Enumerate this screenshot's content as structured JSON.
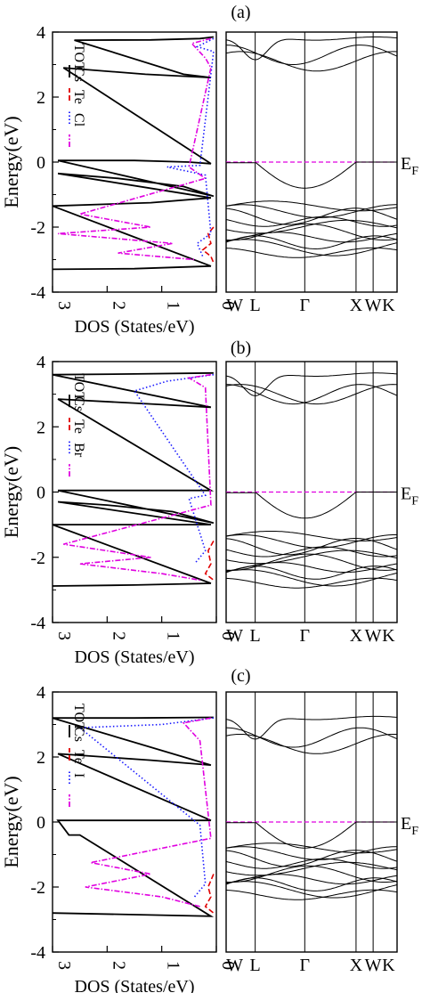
{
  "panels": [
    {
      "label": "(a)",
      "ylabel": "Energy(eV)",
      "ef_label": "E",
      "ef_sub": "F",
      "dos": {
        "xlabel": "DOS (States/eV)",
        "xticks": [
          "3",
          "2",
          "1",
          "0"
        ],
        "yticks": [
          "4",
          "2",
          "0",
          "-2",
          "-4"
        ],
        "legend": [
          {
            "name": "TOT",
            "color": "#000000",
            "dash": "solid"
          },
          {
            "name": "Cs",
            "color": "#e00000",
            "dash": "dashed"
          },
          {
            "name": "Te",
            "color": "#1a1aff",
            "dash": "dotted"
          },
          {
            "name": "Cl",
            "color": "#e000e0",
            "dash": "dashdot"
          }
        ]
      },
      "bands": {
        "kpoints": [
          "W",
          "L",
          "Γ",
          "X",
          "W",
          "K"
        ]
      }
    },
    {
      "label": "(b)",
      "ylabel": "Energy(eV)",
      "ef_label": "E",
      "ef_sub": "F",
      "dos": {
        "xlabel": "DOS (States/eV)",
        "xticks": [
          "3",
          "2",
          "1",
          "0"
        ],
        "yticks": [
          "4",
          "2",
          "0",
          "-2",
          "-4"
        ],
        "legend": [
          {
            "name": "TOT",
            "color": "#000000",
            "dash": "solid"
          },
          {
            "name": "Cs",
            "color": "#e00000",
            "dash": "dashed"
          },
          {
            "name": "Te",
            "color": "#1a1aff",
            "dash": "dotted"
          },
          {
            "name": "Br",
            "color": "#e000e0",
            "dash": "dashdot"
          }
        ]
      },
      "bands": {
        "kpoints": [
          "W",
          "L",
          "Γ",
          "X",
          "W",
          "K"
        ]
      }
    },
    {
      "label": "(c)",
      "ylabel": "Energy(eV)",
      "ef_label": "E",
      "ef_sub": "F",
      "dos": {
        "xlabel": "DOS (States/eV)",
        "xticks": [
          "3",
          "2",
          "1",
          "0"
        ],
        "yticks": [
          "4",
          "2",
          "0",
          "-2",
          "-4"
        ],
        "legend": [
          {
            "name": "TOT",
            "color": "#000000",
            "dash": "solid"
          },
          {
            "name": "Cs",
            "color": "#e00000",
            "dash": "dashed"
          },
          {
            "name": "Te",
            "color": "#1a1aff",
            "dash": "dotted"
          },
          {
            "name": "I",
            "color": "#e000e0",
            "dash": "dashdot"
          }
        ]
      },
      "bands": {
        "kpoints": [
          "W",
          "L",
          "Γ",
          "X",
          "W",
          "K"
        ]
      }
    }
  ],
  "chart_data": [
    {
      "type": "line",
      "panel": "(a)",
      "title": "(a)",
      "subplots": [
        {
          "kind": "density of states",
          "xlabel": "DOS (States/eV)",
          "ylabel": "Energy(eV)",
          "xlim": [
            3,
            0
          ],
          "ylim": [
            -4,
            4
          ],
          "series": [
            {
              "name": "TOT",
              "points": [
                [
                  0.05,
                  3.85
                ],
                [
                  0.3,
                  3.8
                ],
                [
                  1.2,
                  3.76
                ],
                [
                  2.6,
                  3.75
                ],
                [
                  0.6,
                  2.7
                ],
                [
                  0.1,
                  2.6
                ],
                [
                  1.3,
                  2.7
                ],
                [
                  2.8,
                  2.9
                ],
                [
                  0.1,
                  -0.05
                ],
                [
                  0.5,
                  0.0
                ],
                [
                  1.5,
                  0.05
                ],
                [
                  2.9,
                  0.05
                ],
                [
                  0.05,
                  -1.05
                ],
                [
                  0.6,
                  -0.75
                ],
                [
                  1.8,
                  -0.5
                ],
                [
                  2.9,
                  -0.35
                ],
                [
                  0.1,
                  -1.1
                ],
                [
                  1.2,
                  -1.25
                ],
                [
                  3.0,
                  -1.35
                ],
                [
                  0.1,
                  -3.2
                ],
                [
                  1.5,
                  -3.28
                ],
                [
                  3.0,
                  -3.3
                ]
              ]
            },
            {
              "name": "Cs",
              "points": [
                [
                  0.05,
                  -2.0
                ],
                [
                  0.15,
                  -2.2
                ],
                [
                  0.1,
                  -2.5
                ],
                [
                  0.25,
                  -2.7
                ],
                [
                  0.1,
                  -2.9
                ],
                [
                  0.05,
                  -3.1
                ]
              ]
            },
            {
              "name": "Te",
              "points": [
                [
                  0.05,
                  3.8
                ],
                [
                  0.35,
                  3.55
                ],
                [
                  0.05,
                  3.4
                ],
                [
                  0.3,
                  -0.1
                ],
                [
                  0.9,
                  -0.15
                ],
                [
                  0.2,
                  -0.4
                ],
                [
                  0.1,
                  -2.2
                ],
                [
                  0.35,
                  -2.5
                ],
                [
                  0.25,
                  -2.9
                ]
              ]
            },
            {
              "name": "Cl",
              "points": [
                [
                  0.1,
                  3.8
                ],
                [
                  0.45,
                  3.65
                ],
                [
                  0.2,
                  3.2
                ],
                [
                  0.1,
                  2.9
                ],
                [
                  0.5,
                  -0.15
                ],
                [
                  0.2,
                  -0.5
                ],
                [
                  2.5,
                  -1.6
                ],
                [
                  1.2,
                  -2.0
                ],
                [
                  2.9,
                  -2.2
                ],
                [
                  0.8,
                  -2.5
                ],
                [
                  1.8,
                  -2.8
                ],
                [
                  0.4,
                  -3.0
                ]
              ]
            }
          ]
        },
        {
          "kind": "band structure",
          "ylim": [
            -4,
            4
          ],
          "x_tick_labels": [
            "W",
            "L",
            "Γ",
            "X",
            "W",
            "K"
          ],
          "fermi_level": 0,
          "fermi_label": "EF"
        }
      ]
    },
    {
      "type": "line",
      "panel": "(b)",
      "title": "(b)",
      "subplots": [
        {
          "kind": "density of states",
          "xlabel": "DOS (States/eV)",
          "ylabel": "Energy(eV)",
          "xlim": [
            3,
            0
          ],
          "ylim": [
            -4,
            4
          ],
          "series": [
            {
              "name": "TOT",
              "points": [
                [
                  0.05,
                  3.65
                ],
                [
                  1.5,
                  3.62
                ],
                [
                  3.0,
                  3.6
                ],
                [
                  0.1,
                  2.6
                ],
                [
                  1.2,
                  2.7
                ],
                [
                  2.9,
                  2.85
                ],
                [
                  0.1,
                  0.05
                ],
                [
                  1.2,
                  0.05
                ],
                [
                  2.9,
                  0.05
                ],
                [
                  0.05,
                  -0.95
                ],
                [
                  0.8,
                  -0.6
                ],
                [
                  2.0,
                  -0.4
                ],
                [
                  2.9,
                  -0.3
                ],
                [
                  0.1,
                  -1.0
                ],
                [
                  1.5,
                  -1.0
                ],
                [
                  3.0,
                  -1.0
                ],
                [
                  0.1,
                  -2.8
                ],
                [
                  1.5,
                  -2.85
                ],
                [
                  3.0,
                  -2.88
                ]
              ]
            },
            {
              "name": "Cs",
              "points": [
                [
                  0.05,
                  -1.5
                ],
                [
                  0.15,
                  -1.8
                ],
                [
                  0.1,
                  -2.2
                ],
                [
                  0.2,
                  -2.5
                ],
                [
                  0.05,
                  -2.7
                ]
              ]
            },
            {
              "name": "Te",
              "points": [
                [
                  0.05,
                  3.6
                ],
                [
                  0.9,
                  3.4
                ],
                [
                  1.5,
                  3.1
                ],
                [
                  0.2,
                  -0.1
                ],
                [
                  0.5,
                  -0.2
                ],
                [
                  0.2,
                  -1.8
                ],
                [
                  0.4,
                  -2.2
                ]
              ]
            },
            {
              "name": "Br",
              "points": [
                [
                  0.1,
                  3.6
                ],
                [
                  0.5,
                  3.5
                ],
                [
                  0.2,
                  3.2
                ],
                [
                  0.1,
                  -0.4
                ],
                [
                  2.8,
                  -1.6
                ],
                [
                  1.2,
                  -2.0
                ],
                [
                  2.5,
                  -2.2
                ],
                [
                  1.0,
                  -2.5
                ],
                [
                  0.3,
                  -2.7
                ]
              ]
            }
          ]
        },
        {
          "kind": "band structure",
          "ylim": [
            -4,
            4
          ],
          "x_tick_labels": [
            "W",
            "L",
            "Γ",
            "X",
            "W",
            "K"
          ],
          "fermi_level": 0,
          "fermi_label": "EF"
        }
      ]
    },
    {
      "type": "line",
      "panel": "(c)",
      "title": "(c)",
      "subplots": [
        {
          "kind": "density of states",
          "xlabel": "DOS (States/eV)",
          "ylabel": "Energy(eV)",
          "xlim": [
            3,
            0
          ],
          "ylim": [
            -4,
            4
          ],
          "series": [
            {
              "name": "TOT",
              "points": [
                [
                  0.05,
                  3.22
                ],
                [
                  1.5,
                  3.2
                ],
                [
                  3.0,
                  3.2
                ],
                [
                  0.1,
                  1.75
                ],
                [
                  1.2,
                  1.9
                ],
                [
                  2.9,
                  2.1
                ],
                [
                  0.1,
                  0.05
                ],
                [
                  1.5,
                  0.05
                ],
                [
                  2.9,
                  0.05
                ],
                [
                  2.7,
                  -0.4
                ],
                [
                  2.5,
                  -0.4
                ],
                [
                  0.1,
                  -2.9
                ],
                [
                  1.5,
                  -2.85
                ],
                [
                  3.0,
                  -2.8
                ]
              ]
            },
            {
              "name": "Cs",
              "points": [
                [
                  0.05,
                  -1.6
                ],
                [
                  0.15,
                  -2.0
                ],
                [
                  0.1,
                  -2.3
                ],
                [
                  0.2,
                  -2.6
                ],
                [
                  0.05,
                  -2.8
                ]
              ]
            },
            {
              "name": "Te",
              "points": [
                [
                  0.05,
                  3.2
                ],
                [
                  1.0,
                  3.0
                ],
                [
                  2.5,
                  2.9
                ],
                [
                  0.3,
                  -0.1
                ],
                [
                  0.2,
                  -1.9
                ],
                [
                  0.4,
                  -2.3
                ]
              ]
            },
            {
              "name": "I",
              "points": [
                [
                  0.1,
                  3.2
                ],
                [
                  0.6,
                  3.05
                ],
                [
                  0.3,
                  2.5
                ],
                [
                  0.1,
                  -0.5
                ],
                [
                  2.3,
                  -1.25
                ],
                [
                  1.2,
                  -1.6
                ],
                [
                  2.4,
                  -2.0
                ],
                [
                  1.0,
                  -2.3
                ],
                [
                  0.3,
                  -2.6
                ]
              ]
            }
          ]
        },
        {
          "kind": "band structure",
          "ylim": [
            -4,
            4
          ],
          "x_tick_labels": [
            "W",
            "L",
            "Γ",
            "X",
            "W",
            "K"
          ],
          "fermi_level": 0,
          "fermi_label": "EF"
        }
      ]
    }
  ]
}
